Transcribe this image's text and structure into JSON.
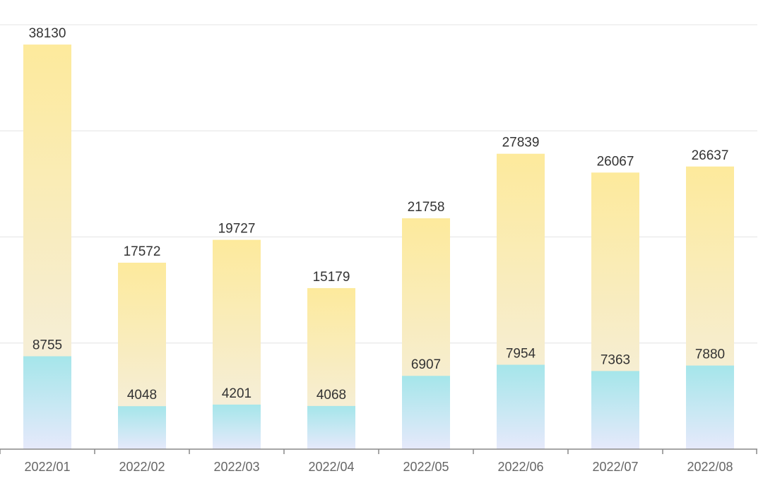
{
  "chart_data": {
    "type": "bar",
    "categories": [
      "2022/01",
      "2022/02",
      "2022/03",
      "2022/04",
      "2022/05",
      "2022/06",
      "2022/07",
      "2022/08"
    ],
    "series": [
      {
        "values": [
          38130,
          17572,
          19727,
          15179,
          21758,
          27839,
          26067,
          26637
        ],
        "color": "#fbe9a0"
      },
      {
        "values": [
          8755,
          4048,
          4201,
          4068,
          6907,
          7954,
          7363,
          7880
        ],
        "color": "#a9e6ec"
      }
    ],
    "ylim": [
      0,
      40000
    ],
    "grid": true,
    "show_y_tick_labels": false,
    "xlabel": "",
    "ylabel": "",
    "title": ""
  }
}
